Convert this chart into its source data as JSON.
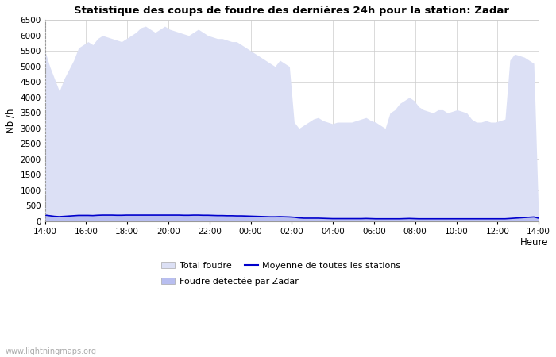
{
  "title": "Statistique des coups de foudre des dernières 24h pour la station: Zadar",
  "xlabel": "Heure",
  "ylabel": "Nb /h",
  "watermark": "www.lightningmaps.org",
  "ylim": [
    0,
    6500
  ],
  "yticks": [
    0,
    500,
    1000,
    1500,
    2000,
    2500,
    3000,
    3500,
    4000,
    4500,
    5000,
    5500,
    6000,
    6500
  ],
  "xtick_labels": [
    "14:00",
    "16:00",
    "18:00",
    "20:00",
    "22:00",
    "00:00",
    "02:00",
    "04:00",
    "06:00",
    "08:00",
    "10:00",
    "12:00",
    "14:00"
  ],
  "bg_color": "#ffffff",
  "grid_color": "#cccccc",
  "total_foudre_color": "#dce0f5",
  "zadar_color": "#b8bef0",
  "mean_color": "#0000cc",
  "total_foudre": [
    5500,
    5000,
    4600,
    4200,
    4600,
    4900,
    5200,
    5600,
    5700,
    5800,
    5700,
    5900,
    6000,
    5950,
    5900,
    5850,
    5800,
    5900,
    6000,
    6100,
    6250,
    6300,
    6200,
    6100,
    6200,
    6300,
    6200,
    6150,
    6100,
    6050,
    6000,
    6100,
    6200,
    6100,
    6000,
    5950,
    5900,
    5900,
    5850,
    5800,
    5800,
    5700,
    5600,
    5500,
    5400,
    5300,
    5200,
    5100,
    5000,
    5200,
    5100,
    5000,
    3200,
    3000,
    3100,
    3200,
    3300,
    3350,
    3250,
    3200,
    3150,
    3200,
    3200,
    3200,
    3200,
    3250,
    3300,
    3350,
    3250,
    3200,
    3100,
    3000,
    3500,
    3600,
    3800,
    3900,
    4000,
    3900,
    3700,
    3600,
    3550,
    3500,
    3600,
    3600,
    3500,
    3550,
    3600,
    3550,
    3500,
    3300,
    3200,
    3200,
    3250,
    3200,
    3200,
    3250,
    3300,
    5200,
    5400,
    5350,
    5300,
    5200,
    5100,
    100
  ],
  "zadar": [
    200,
    180,
    160,
    150,
    160,
    170,
    180,
    190,
    190,
    190,
    185,
    195,
    200,
    200,
    200,
    195,
    195,
    200,
    200,
    200,
    200,
    200,
    200,
    200,
    200,
    200,
    200,
    200,
    200,
    195,
    195,
    200,
    200,
    195,
    195,
    190,
    185,
    185,
    180,
    180,
    175,
    175,
    170,
    165,
    160,
    155,
    150,
    145,
    145,
    150,
    145,
    140,
    130,
    110,
    100,
    100,
    100,
    100,
    95,
    90,
    85,
    85,
    85,
    85,
    85,
    85,
    85,
    90,
    85,
    80,
    80,
    80,
    80,
    80,
    80,
    85,
    90,
    85,
    80,
    80,
    80,
    80,
    80,
    80,
    80,
    80,
    80,
    80,
    80,
    80,
    80,
    80,
    80,
    80,
    80,
    80,
    80,
    90,
    100,
    110,
    120,
    130,
    140,
    100
  ],
  "mean_line": [
    200,
    180,
    160,
    150,
    160,
    170,
    180,
    190,
    190,
    190,
    185,
    195,
    200,
    200,
    200,
    195,
    195,
    200,
    200,
    200,
    200,
    200,
    200,
    200,
    200,
    200,
    200,
    200,
    200,
    195,
    195,
    200,
    200,
    195,
    195,
    190,
    185,
    185,
    180,
    180,
    175,
    175,
    170,
    165,
    160,
    155,
    150,
    145,
    145,
    150,
    145,
    140,
    130,
    110,
    100,
    100,
    100,
    100,
    95,
    90,
    85,
    85,
    85,
    85,
    85,
    85,
    85,
    90,
    85,
    80,
    80,
    80,
    80,
    80,
    80,
    85,
    90,
    85,
    80,
    80,
    80,
    80,
    80,
    80,
    80,
    80,
    80,
    80,
    80,
    80,
    80,
    80,
    80,
    80,
    80,
    80,
    80,
    90,
    100,
    110,
    120,
    130,
    140,
    100
  ]
}
